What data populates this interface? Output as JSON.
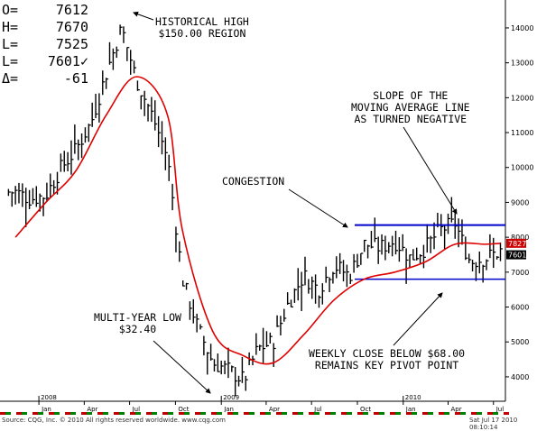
{
  "ohlc": [
    {
      "label": "O=",
      "value": "7612"
    },
    {
      "label": "H=",
      "value": "7670"
    },
    {
      "label": "L=",
      "value": "7525"
    },
    {
      "label": "L=",
      "value": "7601✓"
    },
    {
      "label": "Δ=",
      "value": "-61"
    }
  ],
  "annotations": {
    "hist_high": "HISTORICAL HIGH\n$150.00 REGION",
    "slope": "SLOPE OF THE\nMOVING AVERAGE LINE\nAS TURNED NEGATIVE",
    "congestion": "CONGESTION",
    "multi_year_low": "MULTI-YEAR LOW\n$32.40",
    "weekly_close": "WEEKLY CLOSE BELOW $68.00\nREMAINS KEY PIVOT POINT"
  },
  "footer": {
    "source": "Source: CQG, Inc. © 2010 All rights reserved worldwide. www.cqg.com",
    "timestamp": "Sat Jul 17 2010 08:10:14"
  },
  "colors": {
    "price_bars": "#000000",
    "moving_average": "#e00000",
    "resistance_line": "#0000cc",
    "support_line": "#0000cc",
    "price_box": "#cc0000"
  },
  "chart_data": {
    "type": "ohlc",
    "title": "",
    "y_axis_ticks": [
      4000,
      5000,
      6000,
      7000,
      8000,
      9000,
      10000,
      11000,
      12000,
      13000,
      14000
    ],
    "ylim": [
      3300,
      14800
    ],
    "x_axis_months": [
      "Jan",
      "Apr",
      "Jul",
      "Oct",
      "Jan",
      "Apr",
      "Jul",
      "Oct",
      "Jan",
      "Apr",
      "Jul"
    ],
    "x_axis_years": [
      "2008",
      "2009",
      "2010"
    ],
    "last_price_labels": [
      {
        "text": "7827",
        "value": 7827
      },
      {
        "text": "7601",
        "value": 7601
      }
    ],
    "resistance_level": 8350,
    "support_level": 6800,
    "series": [
      {
        "name": "",
        "kind": "close",
        "x": [
          "2007-11",
          "2007-12",
          "2008-01",
          "2008-02",
          "2008-03",
          "2008-04",
          "2008-05",
          "2008-06",
          "2008-07",
          "2008-08",
          "2008-09",
          "2008-10",
          "2008-11",
          "2008-12",
          "2009-01",
          "2009-02",
          "2009-03",
          "2009-04",
          "2009-05",
          "2009-06",
          "2009-07",
          "2009-08",
          "2009-09",
          "2009-10",
          "2009-11",
          "2009-12",
          "2010-01",
          "2010-02",
          "2010-03",
          "2010-04",
          "2010-05",
          "2010-06",
          "2010-07"
        ],
        "values": [
          9300,
          9100,
          9200,
          10000,
          10500,
          11300,
          12700,
          14000,
          12500,
          11500,
          10300,
          6800,
          5400,
          4400,
          4200,
          3900,
          4800,
          5000,
          6100,
          6900,
          6500,
          7200,
          6900,
          7800,
          7700,
          7900,
          7400,
          7700,
          8200,
          8400,
          7300,
          7400,
          7601
        ]
      },
      {
        "name": "",
        "kind": "moving_average",
        "x": [
          "2007-11",
          "2008-01",
          "2008-03",
          "2008-05",
          "2008-07",
          "2008-09",
          "2008-10",
          "2008-12",
          "2009-02",
          "2009-04",
          "2009-06",
          "2009-08",
          "2009-10",
          "2009-12",
          "2010-02",
          "2010-04",
          "2010-06",
          "2010-07"
        ],
        "values": [
          8000,
          9000,
          9900,
          11500,
          12600,
          11500,
          8200,
          5300,
          4600,
          4400,
          5200,
          6200,
          6800,
          7000,
          7300,
          7800,
          7800,
          7827
        ]
      }
    ]
  }
}
